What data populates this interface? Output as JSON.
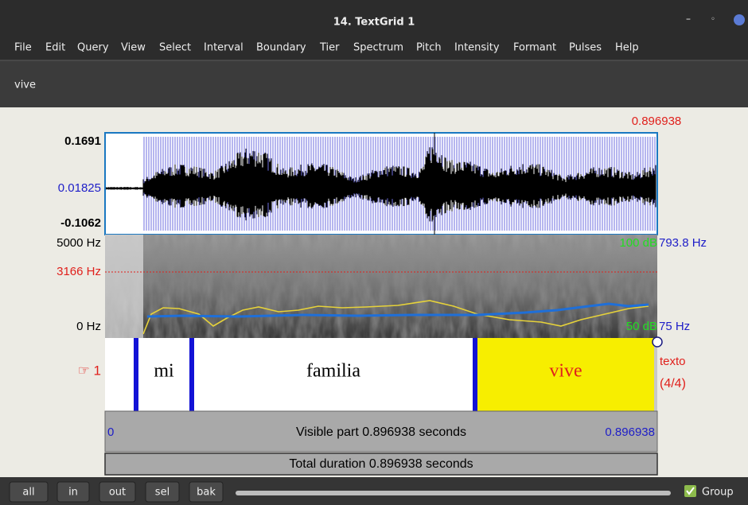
{
  "window": {
    "title": "14. TextGrid 1"
  },
  "menu": [
    "File",
    "Edit",
    "Query",
    "View",
    "Select",
    "Interval",
    "Boundary",
    "Tier",
    "Spectrum",
    "Pitch",
    "Intensity",
    "Formant",
    "Pulses",
    "Help"
  ],
  "text_field": "vive",
  "editor": {
    "cursor_time": "0.896938",
    "waveform": {
      "max": "0.1691",
      "cursor_value": "0.01825",
      "min": "-0.1062"
    },
    "spectrogram": {
      "top": "5000 Hz",
      "cursor": "3166 Hz",
      "bottom": "0 Hz",
      "intensity_top": "100 dB",
      "pitch_top": "793.8 Hz",
      "intensity_bottom": "50 dB",
      "pitch_bottom": "75 Hz"
    },
    "tier": {
      "label": "☞ 1",
      "intervals": [
        "mi",
        "familia",
        "vive"
      ],
      "name": "texto",
      "count": "(4/4)"
    },
    "visible": {
      "start": "0",
      "text": "Visible part 0.896938 seconds",
      "end": "0.896938"
    },
    "total": "Total duration 0.896938 seconds"
  },
  "buttons": [
    "all",
    "in",
    "out",
    "sel",
    "bak"
  ],
  "group": "Group"
}
